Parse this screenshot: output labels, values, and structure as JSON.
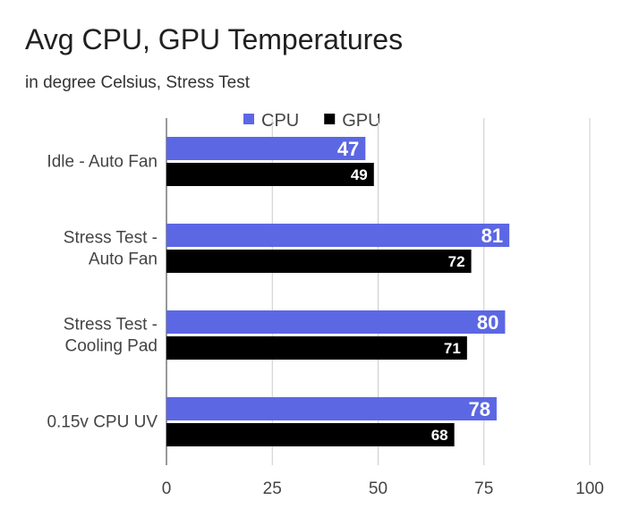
{
  "chart_data": {
    "type": "bar",
    "orientation": "horizontal",
    "title": "Avg CPU, GPU Temperatures",
    "subtitle": "in degree Celsius, Stress Test",
    "categories": [
      [
        "Idle - Auto Fan"
      ],
      [
        "Stress Test -",
        "Auto Fan"
      ],
      [
        "Stress Test -",
        "Cooling Pad"
      ],
      [
        "0.15v CPU UV"
      ]
    ],
    "series": [
      {
        "name": "CPU",
        "color": "#5c67e4",
        "values": [
          47,
          81,
          80,
          78
        ]
      },
      {
        "name": "GPU",
        "color": "#000000",
        "values": [
          49,
          72,
          71,
          68
        ]
      }
    ],
    "xlim": [
      0,
      100
    ],
    "xticks": [
      0,
      25,
      50,
      75,
      100
    ],
    "legend_position": "top",
    "grid": true,
    "xlabel": "",
    "ylabel": ""
  }
}
